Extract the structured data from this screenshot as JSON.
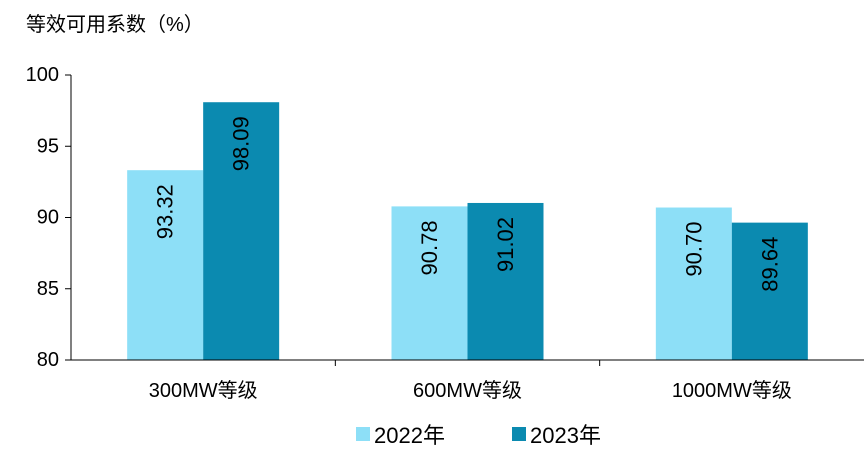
{
  "chart_data": {
    "type": "bar",
    "ylabel": "等效可用系数（%）",
    "categories": [
      "300MW等级",
      "600MW等级",
      "1000MW等级"
    ],
    "ylim": [
      80,
      100
    ],
    "yticks": [
      80,
      85,
      90,
      95,
      100
    ],
    "grid": false,
    "legend_position": "bottom",
    "series": [
      {
        "name": "2022年",
        "color": "#8ddff7",
        "values": [
          93.32,
          90.78,
          90.7
        ],
        "labels": [
          "93.32",
          "90.78",
          "90.70"
        ]
      },
      {
        "name": "2023年",
        "color": "#0b8ab0",
        "values": [
          98.09,
          91.02,
          89.64
        ],
        "labels": [
          "98.09",
          "91.02",
          "89.64"
        ]
      }
    ]
  }
}
